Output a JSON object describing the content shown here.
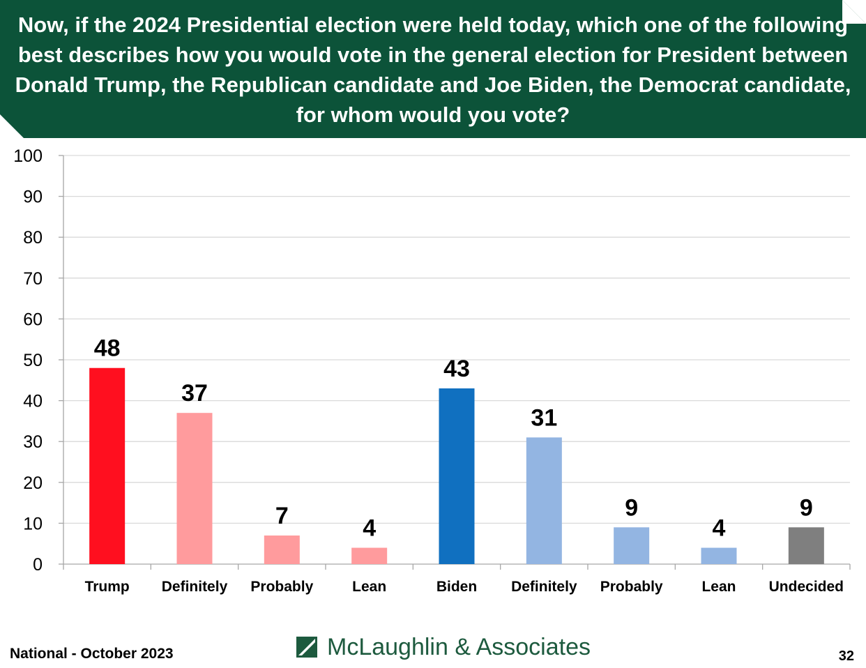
{
  "title": "Now, if the 2024 Presidential election were held today, which one of the following best describes how you would vote in the general election for President between Donald Trump, the Republican candidate and Joe Biden, the Democrat candidate, for whom would you vote?",
  "chart_data": {
    "type": "bar",
    "title": "Now, if the 2024 Presidential election were held today, which one of the following best describes how you would vote in the general election for President between Donald Trump, the Republican candidate and Joe Biden, the Democrat candidate, for whom would you vote?",
    "categories": [
      "Trump",
      "Definitely",
      "Probably",
      "Lean",
      "Biden",
      "Definitely",
      "Probably",
      "Lean",
      "Undecided"
    ],
    "values": [
      48,
      37,
      7,
      4,
      43,
      31,
      9,
      4,
      9
    ],
    "colors": [
      "#ff0f1f",
      "#ff9b9d",
      "#ff9b9d",
      "#ff9b9d",
      "#1070c0",
      "#93b5e2",
      "#93b5e2",
      "#93b5e2",
      "#7f7f7f"
    ],
    "ylim": [
      0,
      100
    ],
    "yticks": [
      0,
      10,
      20,
      30,
      40,
      50,
      60,
      70,
      80,
      90,
      100
    ],
    "xlabel": "",
    "ylabel": "",
    "grid": true,
    "legend": "none"
  },
  "footer": {
    "left": "National - October 2023",
    "logo_text": "McLaughlin & Associates",
    "page_number": "32"
  },
  "colors": {
    "banner": "#0c5339",
    "grid": "#d9d9d9",
    "axis": "#a6a6a6"
  }
}
